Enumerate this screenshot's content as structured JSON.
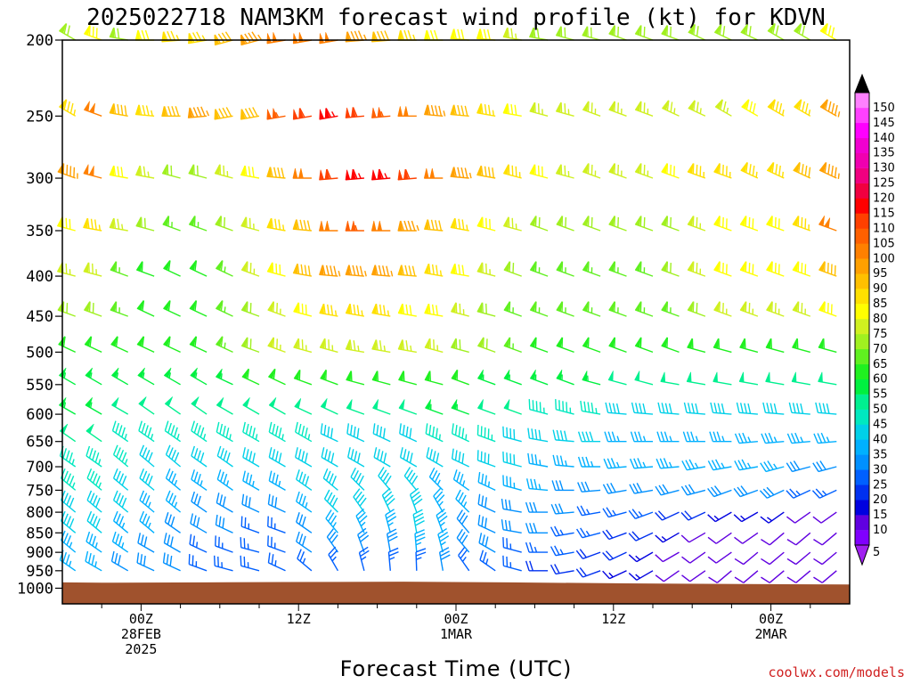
{
  "page": {
    "title": "2025022718 NAM3KM forecast wind profile (kt) for KDVN",
    "credit": "coolwx.com/models"
  },
  "chart_data": {
    "type": "wind-barb-profile",
    "title": "2025022718 NAM3KM forecast wind profile (kt) for KDVN",
    "xlabel": "Forecast Time (UTC)",
    "ylabel": "",
    "units": "kt",
    "y_axis_levels_hPa": [
      200,
      250,
      300,
      350,
      400,
      450,
      500,
      550,
      600,
      650,
      700,
      750,
      800,
      850,
      900,
      950,
      1000
    ],
    "y_tick_labels": [
      "200",
      "250",
      "300",
      "350",
      "400",
      "450",
      "500",
      "550",
      "600",
      "650",
      "700",
      "750",
      "800",
      "850",
      "900",
      "950",
      "1000"
    ],
    "x_range_hours": [
      0,
      60
    ],
    "x_tick_labels": [
      {
        "hour": 6,
        "lines": [
          "00Z",
          "28FEB",
          "2025"
        ]
      },
      {
        "hour": 18,
        "lines": [
          "12Z"
        ]
      },
      {
        "hour": 30,
        "lines": [
          "00Z",
          "1MAR"
        ]
      },
      {
        "hour": 42,
        "lines": [
          "12Z"
        ]
      },
      {
        "hour": 54,
        "lines": [
          "00Z",
          "2MAR"
        ]
      }
    ],
    "colorbar": {
      "levels": [
        5,
        10,
        15,
        20,
        25,
        30,
        35,
        40,
        45,
        50,
        55,
        60,
        65,
        70,
        75,
        80,
        85,
        90,
        95,
        100,
        105,
        110,
        115,
        120,
        125,
        130,
        135,
        140,
        145,
        150
      ],
      "colors": [
        "#8000ff",
        "#6000e0",
        "#0000e0",
        "#0030f0",
        "#0060ff",
        "#0090ff",
        "#00b0ff",
        "#00d0e8",
        "#00e8c0",
        "#00f090",
        "#00f040",
        "#20f020",
        "#60f020",
        "#a0f020",
        "#d0f020",
        "#ffff00",
        "#ffe000",
        "#ffc000",
        "#ffa000",
        "#ff8000",
        "#ff6000",
        "#ff4000",
        "#ff0000",
        "#f00040",
        "#f00080",
        "#f000b0",
        "#f000d0",
        "#ff00ff",
        "#ff40ff",
        "#ff80ff"
      ],
      "extend": "both"
    },
    "surface_pressure_hPa": [
      {
        "hour": 0,
        "p": 983
      },
      {
        "hour": 3,
        "p": 984
      },
      {
        "hour": 11,
        "p": 983
      },
      {
        "hour": 17,
        "p": 982
      },
      {
        "hour": 26,
        "p": 981
      },
      {
        "hour": 34,
        "p": 983
      },
      {
        "hour": 43,
        "p": 986
      },
      {
        "hour": 52,
        "p": 988
      },
      {
        "hour": 60,
        "p": 989
      }
    ],
    "wind_profile": {
      "times_hours": [
        1.0,
        3.0,
        5.0,
        7.0,
        9.0,
        11.0,
        13.0,
        15.0,
        17.0,
        19.0,
        21.0,
        23.0,
        25.0,
        27.0,
        29.0,
        31.0,
        33.0,
        35.0,
        37.0,
        39.0,
        41.0,
        43.0,
        45.0,
        47.0,
        49.0,
        51.0,
        53.0,
        55.0,
        57.0,
        59.0
      ],
      "levels_hPa": [
        200,
        250,
        300,
        350,
        400,
        450,
        500,
        550,
        600,
        650,
        700,
        750,
        800,
        850,
        900,
        950
      ],
      "speed_kt": [
        [
          70,
          80,
          70,
          80,
          85,
          85,
          90,
          95,
          100,
          100,
          100,
          95,
          90,
          85,
          80,
          80,
          80,
          75,
          70,
          70,
          70,
          70,
          70,
          70,
          70,
          70,
          70,
          70,
          70,
          80
        ],
        [
          85,
          100,
          90,
          85,
          90,
          95,
          90,
          90,
          105,
          110,
          115,
          110,
          105,
          100,
          95,
          90,
          85,
          80,
          75,
          75,
          75,
          75,
          75,
          75,
          75,
          75,
          80,
          85,
          85,
          95
        ],
        [
          95,
          100,
          80,
          75,
          70,
          70,
          75,
          80,
          90,
          100,
          110,
          115,
          115,
          110,
          100,
          95,
          90,
          85,
          80,
          75,
          75,
          75,
          75,
          80,
          85,
          85,
          85,
          85,
          90,
          95
        ],
        [
          80,
          85,
          75,
          70,
          65,
          65,
          70,
          75,
          85,
          90,
          100,
          105,
          100,
          95,
          90,
          85,
          80,
          75,
          70,
          70,
          70,
          70,
          70,
          70,
          75,
          80,
          80,
          80,
          85,
          100
        ],
        [
          75,
          75,
          65,
          60,
          60,
          60,
          65,
          75,
          80,
          90,
          95,
          95,
          95,
          90,
          85,
          80,
          75,
          70,
          65,
          65,
          65,
          65,
          65,
          70,
          75,
          80,
          80,
          80,
          80,
          90
        ],
        [
          70,
          70,
          65,
          60,
          60,
          60,
          65,
          70,
          75,
          80,
          85,
          85,
          85,
          80,
          80,
          75,
          70,
          65,
          65,
          65,
          65,
          65,
          65,
          65,
          70,
          75,
          75,
          75,
          75,
          80
        ],
        [
          60,
          60,
          60,
          60,
          60,
          60,
          65,
          70,
          75,
          75,
          75,
          75,
          75,
          75,
          75,
          70,
          70,
          65,
          60,
          60,
          60,
          60,
          60,
          60,
          60,
          60,
          60,
          60,
          60,
          60
        ],
        [
          55,
          55,
          55,
          55,
          55,
          55,
          55,
          60,
          60,
          60,
          60,
          60,
          60,
          60,
          60,
          60,
          55,
          55,
          55,
          55,
          55,
          50,
          50,
          50,
          50,
          50,
          50,
          50,
          50,
          50
        ],
        [
          55,
          55,
          50,
          50,
          50,
          50,
          50,
          50,
          50,
          50,
          50,
          50,
          50,
          50,
          55,
          55,
          50,
          50,
          45,
          45,
          45,
          40,
          40,
          40,
          40,
          40,
          40,
          40,
          40,
          40
        ],
        [
          50,
          50,
          45,
          45,
          45,
          45,
          45,
          45,
          45,
          45,
          40,
          40,
          40,
          40,
          45,
          45,
          45,
          40,
          40,
          40,
          40,
          35,
          35,
          35,
          35,
          35,
          35,
          35,
          35,
          35
        ],
        [
          45,
          45,
          45,
          40,
          40,
          40,
          40,
          40,
          40,
          40,
          40,
          40,
          40,
          40,
          40,
          40,
          40,
          40,
          35,
          35,
          35,
          35,
          35,
          35,
          35,
          35,
          35,
          35,
          30,
          30
        ],
        [
          45,
          45,
          40,
          40,
          35,
          35,
          35,
          35,
          35,
          40,
          40,
          40,
          40,
          40,
          35,
          35,
          35,
          35,
          35,
          30,
          30,
          30,
          30,
          30,
          30,
          30,
          30,
          30,
          25,
          25
        ],
        [
          40,
          40,
          40,
          35,
          35,
          30,
          30,
          30,
          30,
          35,
          40,
          40,
          40,
          40,
          35,
          35,
          30,
          30,
          30,
          30,
          25,
          25,
          25,
          20,
          20,
          15,
          15,
          15,
          10,
          10
        ],
        [
          40,
          40,
          35,
          35,
          30,
          30,
          30,
          25,
          25,
          30,
          35,
          35,
          35,
          40,
          35,
          30,
          30,
          30,
          30,
          25,
          25,
          20,
          20,
          15,
          10,
          10,
          10,
          10,
          10,
          10
        ],
        [
          35,
          35,
          35,
          30,
          30,
          25,
          25,
          25,
          25,
          30,
          30,
          30,
          30,
          35,
          35,
          30,
          30,
          25,
          25,
          25,
          20,
          20,
          15,
          10,
          10,
          10,
          10,
          10,
          10,
          10
        ],
        [
          35,
          35,
          30,
          30,
          30,
          25,
          25,
          25,
          25,
          25,
          25,
          25,
          25,
          25,
          30,
          25,
          25,
          25,
          20,
          20,
          20,
          15,
          15,
          10,
          10,
          10,
          10,
          10,
          10,
          10
        ]
      ],
      "direction_deg": [
        [
          300,
          290,
          280,
          270,
          265,
          260,
          255,
          255,
          260,
          260,
          260,
          265,
          265,
          270,
          270,
          275,
          275,
          280,
          280,
          285,
          285,
          290,
          290,
          290,
          295,
          295,
          295,
          300,
          300,
          300
        ],
        [
          300,
          290,
          280,
          275,
          270,
          265,
          260,
          260,
          260,
          260,
          260,
          265,
          265,
          270,
          275,
          275,
          280,
          280,
          285,
          285,
          290,
          290,
          290,
          295,
          295,
          300,
          300,
          300,
          300,
          300
        ],
        [
          290,
          285,
          280,
          280,
          285,
          285,
          285,
          280,
          275,
          270,
          265,
          265,
          265,
          265,
          270,
          275,
          280,
          285,
          285,
          285,
          290,
          290,
          290,
          290,
          290,
          290,
          295,
          295,
          295,
          295
        ],
        [
          285,
          280,
          280,
          285,
          290,
          290,
          290,
          285,
          280,
          275,
          270,
          270,
          270,
          270,
          275,
          280,
          285,
          285,
          290,
          290,
          290,
          290,
          290,
          290,
          290,
          290,
          290,
          290,
          290,
          290
        ],
        [
          285,
          285,
          290,
          290,
          295,
          295,
          295,
          290,
          285,
          280,
          275,
          275,
          275,
          275,
          280,
          280,
          285,
          290,
          290,
          290,
          290,
          290,
          290,
          290,
          290,
          290,
          290,
          290,
          290,
          290
        ],
        [
          290,
          290,
          290,
          295,
          295,
          295,
          295,
          290,
          290,
          285,
          280,
          280,
          280,
          280,
          280,
          285,
          285,
          290,
          290,
          290,
          290,
          290,
          290,
          290,
          290,
          290,
          290,
          290,
          290,
          290
        ],
        [
          295,
          295,
          295,
          295,
          295,
          295,
          295,
          290,
          290,
          285,
          285,
          280,
          280,
          280,
          285,
          285,
          290,
          290,
          290,
          290,
          290,
          290,
          290,
          290,
          285,
          285,
          285,
          285,
          285,
          285
        ],
        [
          300,
          300,
          300,
          300,
          300,
          300,
          295,
          295,
          295,
          290,
          290,
          285,
          285,
          285,
          285,
          290,
          290,
          290,
          290,
          290,
          285,
          285,
          285,
          280,
          280,
          280,
          280,
          280,
          280,
          280
        ],
        [
          300,
          300,
          300,
          305,
          305,
          305,
          300,
          300,
          300,
          295,
          295,
          290,
          290,
          290,
          290,
          290,
          290,
          290,
          285,
          285,
          280,
          275,
          275,
          275,
          275,
          275,
          275,
          275,
          275,
          275
        ],
        [
          305,
          305,
          305,
          305,
          305,
          305,
          300,
          300,
          300,
          300,
          295,
          295,
          295,
          295,
          295,
          295,
          290,
          285,
          280,
          275,
          270,
          270,
          270,
          270,
          270,
          270,
          265,
          265,
          265,
          265
        ],
        [
          305,
          305,
          310,
          310,
          310,
          305,
          305,
          300,
          300,
          300,
          300,
          300,
          300,
          300,
          300,
          295,
          290,
          285,
          280,
          275,
          270,
          265,
          265,
          265,
          260,
          260,
          260,
          255,
          255,
          255
        ],
        [
          310,
          310,
          310,
          310,
          310,
          305,
          305,
          300,
          300,
          305,
          310,
          315,
          320,
          320,
          315,
          305,
          295,
          285,
          275,
          270,
          265,
          260,
          260,
          255,
          255,
          250,
          250,
          245,
          245,
          245
        ],
        [
          310,
          310,
          310,
          310,
          310,
          305,
          300,
          295,
          295,
          305,
          315,
          325,
          335,
          340,
          330,
          315,
          295,
          280,
          270,
          265,
          260,
          255,
          250,
          245,
          245,
          240,
          240,
          235,
          235,
          235
        ],
        [
          310,
          310,
          310,
          310,
          305,
          300,
          295,
          290,
          290,
          305,
          320,
          335,
          345,
          350,
          340,
          320,
          295,
          280,
          270,
          260,
          255,
          250,
          245,
          240,
          240,
          235,
          235,
          230,
          230,
          230
        ],
        [
          310,
          305,
          305,
          300,
          300,
          295,
          290,
          285,
          290,
          305,
          325,
          340,
          350,
          355,
          345,
          320,
          300,
          285,
          270,
          260,
          250,
          245,
          240,
          240,
          235,
          235,
          230,
          230,
          230,
          230
        ],
        [
          305,
          300,
          300,
          295,
          295,
          290,
          285,
          285,
          295,
          310,
          330,
          345,
          355,
          358,
          350,
          325,
          305,
          285,
          270,
          260,
          250,
          245,
          240,
          235,
          235,
          230,
          230,
          230,
          230,
          230
        ]
      ]
    }
  }
}
